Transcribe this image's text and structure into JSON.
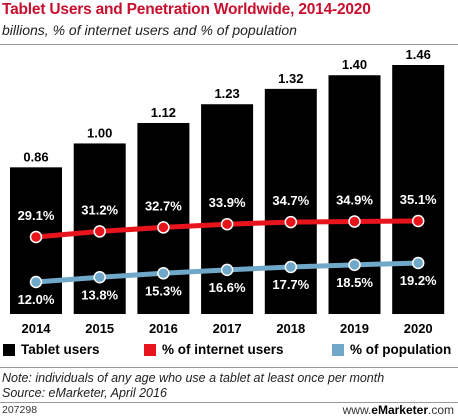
{
  "header": {
    "title": "Tablet Users and Penetration Worldwide, 2014-2020",
    "subtitle": "billions, % of internet users and % of population"
  },
  "chart_data": {
    "type": "bar",
    "categories": [
      "2014",
      "2015",
      "2016",
      "2017",
      "2018",
      "2019",
      "2020"
    ],
    "series": [
      {
        "name": "Tablet users",
        "kind": "bar",
        "color": "#000000",
        "values": [
          0.86,
          1.0,
          1.12,
          1.23,
          1.32,
          1.4,
          1.46
        ],
        "labels": [
          "0.86",
          "1.00",
          "1.12",
          "1.23",
          "1.32",
          "1.40",
          "1.46"
        ]
      },
      {
        "name": "% of internet users",
        "kind": "line",
        "color": "#e8141c",
        "values": [
          29.1,
          31.2,
          32.7,
          33.9,
          34.7,
          34.9,
          35.1
        ],
        "labels": [
          "29.1%",
          "31.2%",
          "32.7%",
          "33.9%",
          "34.7%",
          "34.9%",
          "35.1%"
        ]
      },
      {
        "name": "% of population",
        "kind": "line",
        "color": "#6fa8c8",
        "values": [
          12.0,
          13.8,
          15.3,
          16.6,
          17.7,
          18.5,
          19.2
        ],
        "labels": [
          "12.0%",
          "13.8%",
          "15.3%",
          "16.6%",
          "17.7%",
          "18.5%",
          "19.2%"
        ]
      }
    ],
    "title": "Tablet Users and Penetration Worldwide, 2014-2020",
    "subtitle": "billions, % of internet users and % of population",
    "legend_position": "bottom",
    "grid": false
  },
  "legend": {
    "tablet_users": "Tablet users",
    "internet_users": "% of internet users",
    "population": "% of population"
  },
  "footer": {
    "note": "Note: individuals of any age who use a tablet at least once per month",
    "source": "Source: eMarketer, April 2016",
    "chart_id": "207298",
    "brand_prefix": "www.",
    "brand_name": "eMarketer",
    "brand_suffix": ".com"
  }
}
